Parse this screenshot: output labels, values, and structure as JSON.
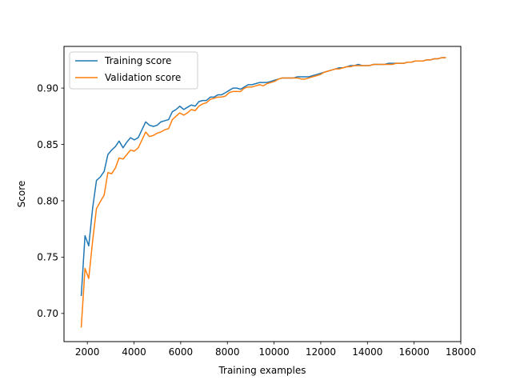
{
  "chart_data": {
    "type": "line",
    "xlabel": "Training examples",
    "ylabel": "Score",
    "xlim": [
      1000,
      18000
    ],
    "ylim": [
      0.675,
      0.937
    ],
    "x_ticks": [
      2000,
      4000,
      6000,
      8000,
      10000,
      12000,
      14000,
      16000,
      18000
    ],
    "y_ticks": [
      0.7,
      0.75,
      0.8,
      0.85,
      0.9
    ],
    "grid": false,
    "legend_position": "top-left",
    "series": [
      {
        "name": "Training score",
        "color": "#1f77b4",
        "points": [
          [
            1740,
            0.716
          ],
          [
            1900,
            0.769
          ],
          [
            2060,
            0.76
          ],
          [
            2230,
            0.794
          ],
          [
            2390,
            0.818
          ],
          [
            2550,
            0.821
          ],
          [
            2720,
            0.826
          ],
          [
            2880,
            0.841
          ],
          [
            3040,
            0.845
          ],
          [
            3200,
            0.848
          ],
          [
            3360,
            0.853
          ],
          [
            3530,
            0.847
          ],
          [
            3690,
            0.852
          ],
          [
            3850,
            0.856
          ],
          [
            4010,
            0.854
          ],
          [
            4180,
            0.856
          ],
          [
            4340,
            0.863
          ],
          [
            4500,
            0.87
          ],
          [
            4660,
            0.867
          ],
          [
            4830,
            0.866
          ],
          [
            4990,
            0.867
          ],
          [
            5150,
            0.87
          ],
          [
            5310,
            0.871
          ],
          [
            5480,
            0.872
          ],
          [
            5640,
            0.879
          ],
          [
            5800,
            0.881
          ],
          [
            5960,
            0.884
          ],
          [
            6130,
            0.881
          ],
          [
            6290,
            0.883
          ],
          [
            6450,
            0.885
          ],
          [
            6620,
            0.884
          ],
          [
            6780,
            0.888
          ],
          [
            6940,
            0.889
          ],
          [
            7100,
            0.889
          ],
          [
            7270,
            0.892
          ],
          [
            7430,
            0.892
          ],
          [
            7590,
            0.894
          ],
          [
            7750,
            0.894
          ],
          [
            7920,
            0.896
          ],
          [
            8080,
            0.898
          ],
          [
            8240,
            0.9
          ],
          [
            8400,
            0.9
          ],
          [
            8570,
            0.899
          ],
          [
            8730,
            0.901
          ],
          [
            8890,
            0.903
          ],
          [
            9050,
            0.903
          ],
          [
            9220,
            0.904
          ],
          [
            9380,
            0.905
          ],
          [
            9540,
            0.905
          ],
          [
            9700,
            0.905
          ],
          [
            9870,
            0.906
          ],
          [
            10030,
            0.907
          ],
          [
            10190,
            0.908
          ],
          [
            10350,
            0.909
          ],
          [
            10520,
            0.909
          ],
          [
            10680,
            0.909
          ],
          [
            10840,
            0.909
          ],
          [
            11000,
            0.91
          ],
          [
            11170,
            0.91
          ],
          [
            11330,
            0.91
          ],
          [
            11490,
            0.91
          ],
          [
            11650,
            0.911
          ],
          [
            11820,
            0.912
          ],
          [
            11980,
            0.913
          ],
          [
            12140,
            0.914
          ],
          [
            12300,
            0.915
          ],
          [
            12470,
            0.916
          ],
          [
            12630,
            0.917
          ],
          [
            12790,
            0.918
          ],
          [
            12960,
            0.918
          ],
          [
            13120,
            0.919
          ],
          [
            13280,
            0.92
          ],
          [
            13440,
            0.92
          ],
          [
            13610,
            0.921
          ],
          [
            13770,
            0.92
          ],
          [
            13930,
            0.92
          ],
          [
            14090,
            0.92
          ],
          [
            14260,
            0.921
          ],
          [
            14420,
            0.921
          ],
          [
            14580,
            0.921
          ],
          [
            14740,
            0.921
          ],
          [
            14910,
            0.922
          ],
          [
            15070,
            0.922
          ],
          [
            15230,
            0.922
          ],
          [
            15390,
            0.922
          ],
          [
            15560,
            0.922
          ],
          [
            15720,
            0.923
          ],
          [
            15880,
            0.923
          ],
          [
            16040,
            0.924
          ],
          [
            16210,
            0.924
          ],
          [
            16370,
            0.924
          ],
          [
            16530,
            0.925
          ],
          [
            16690,
            0.925
          ],
          [
            16860,
            0.926
          ],
          [
            17020,
            0.926
          ],
          [
            17180,
            0.927
          ],
          [
            17340,
            0.927
          ]
        ]
      },
      {
        "name": "Validation score",
        "color": "#ff7f0e",
        "points": [
          [
            1740,
            0.688
          ],
          [
            1900,
            0.74
          ],
          [
            2060,
            0.731
          ],
          [
            2230,
            0.765
          ],
          [
            2390,
            0.793
          ],
          [
            2550,
            0.799
          ],
          [
            2720,
            0.805
          ],
          [
            2880,
            0.825
          ],
          [
            3040,
            0.824
          ],
          [
            3200,
            0.829
          ],
          [
            3360,
            0.838
          ],
          [
            3530,
            0.837
          ],
          [
            3690,
            0.841
          ],
          [
            3850,
            0.845
          ],
          [
            4010,
            0.844
          ],
          [
            4180,
            0.847
          ],
          [
            4340,
            0.854
          ],
          [
            4500,
            0.861
          ],
          [
            4660,
            0.857
          ],
          [
            4830,
            0.858
          ],
          [
            4990,
            0.86
          ],
          [
            5150,
            0.861
          ],
          [
            5310,
            0.863
          ],
          [
            5480,
            0.864
          ],
          [
            5640,
            0.872
          ],
          [
            5800,
            0.875
          ],
          [
            5960,
            0.878
          ],
          [
            6130,
            0.876
          ],
          [
            6290,
            0.878
          ],
          [
            6450,
            0.881
          ],
          [
            6620,
            0.88
          ],
          [
            6780,
            0.884
          ],
          [
            6940,
            0.886
          ],
          [
            7100,
            0.887
          ],
          [
            7270,
            0.89
          ],
          [
            7430,
            0.891
          ],
          [
            7590,
            0.892
          ],
          [
            7750,
            0.892
          ],
          [
            7920,
            0.893
          ],
          [
            8080,
            0.896
          ],
          [
            8240,
            0.897
          ],
          [
            8400,
            0.897
          ],
          [
            8570,
            0.897
          ],
          [
            8730,
            0.9
          ],
          [
            8890,
            0.901
          ],
          [
            9050,
            0.901
          ],
          [
            9220,
            0.902
          ],
          [
            9380,
            0.903
          ],
          [
            9540,
            0.902
          ],
          [
            9700,
            0.904
          ],
          [
            9870,
            0.905
          ],
          [
            10030,
            0.906
          ],
          [
            10190,
            0.908
          ],
          [
            10350,
            0.909
          ],
          [
            10520,
            0.909
          ],
          [
            10680,
            0.909
          ],
          [
            10840,
            0.909
          ],
          [
            11000,
            0.909
          ],
          [
            11170,
            0.908
          ],
          [
            11330,
            0.908
          ],
          [
            11490,
            0.909
          ],
          [
            11650,
            0.91
          ],
          [
            11820,
            0.911
          ],
          [
            11980,
            0.912
          ],
          [
            12140,
            0.914
          ],
          [
            12300,
            0.915
          ],
          [
            12470,
            0.916
          ],
          [
            12630,
            0.917
          ],
          [
            12790,
            0.917
          ],
          [
            12960,
            0.918
          ],
          [
            13120,
            0.919
          ],
          [
            13280,
            0.919
          ],
          [
            13440,
            0.92
          ],
          [
            13610,
            0.92
          ],
          [
            13770,
            0.92
          ],
          [
            13930,
            0.92
          ],
          [
            14090,
            0.92
          ],
          [
            14260,
            0.921
          ],
          [
            14420,
            0.921
          ],
          [
            14580,
            0.921
          ],
          [
            14740,
            0.921
          ],
          [
            14910,
            0.921
          ],
          [
            15070,
            0.921
          ],
          [
            15230,
            0.922
          ],
          [
            15390,
            0.922
          ],
          [
            15560,
            0.922
          ],
          [
            15720,
            0.923
          ],
          [
            15880,
            0.923
          ],
          [
            16040,
            0.924
          ],
          [
            16210,
            0.924
          ],
          [
            16370,
            0.924
          ],
          [
            16530,
            0.925
          ],
          [
            16690,
            0.925
          ],
          [
            16860,
            0.926
          ],
          [
            17020,
            0.926
          ],
          [
            17180,
            0.927
          ],
          [
            17340,
            0.927
          ]
        ]
      }
    ]
  }
}
